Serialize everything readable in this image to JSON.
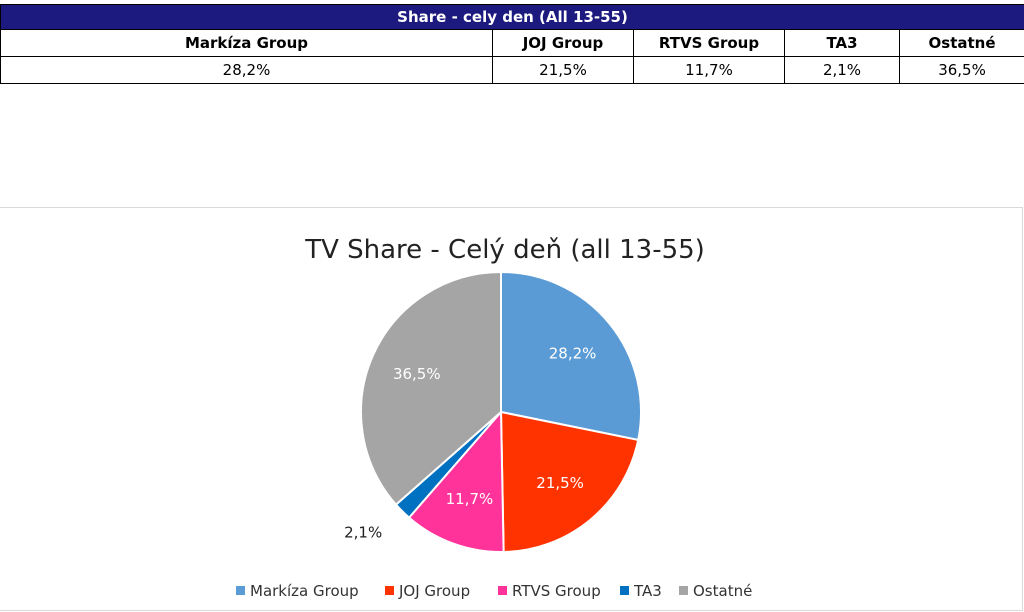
{
  "table": {
    "title": "Share - cely den (All 13-55)",
    "header_bg": "#1c1a7f",
    "columns": [
      "Markíza Group",
      "JOJ Group",
      "RTVS Group",
      "TA3",
      "Ostatné"
    ],
    "values": [
      "28,2%",
      "21,5%",
      "11,7%",
      "2,1%",
      "36,5%"
    ]
  },
  "chart_data": {
    "type": "pie",
    "title": "TV Share - Celý deň (all 13-55)",
    "categories": [
      "Markíza Group",
      "JOJ Group",
      "RTVS Group",
      "TA3",
      "Ostatné"
    ],
    "values": [
      28.2,
      21.5,
      11.7,
      2.1,
      36.5
    ],
    "data_labels": [
      "28,2%",
      "21,5%",
      "11,7%",
      "2,1%",
      "36,5%"
    ],
    "colors": [
      "#5b9bd5",
      "#ff3300",
      "#ff3399",
      "#0070c0",
      "#a5a5a5"
    ],
    "legend_position": "bottom"
  }
}
